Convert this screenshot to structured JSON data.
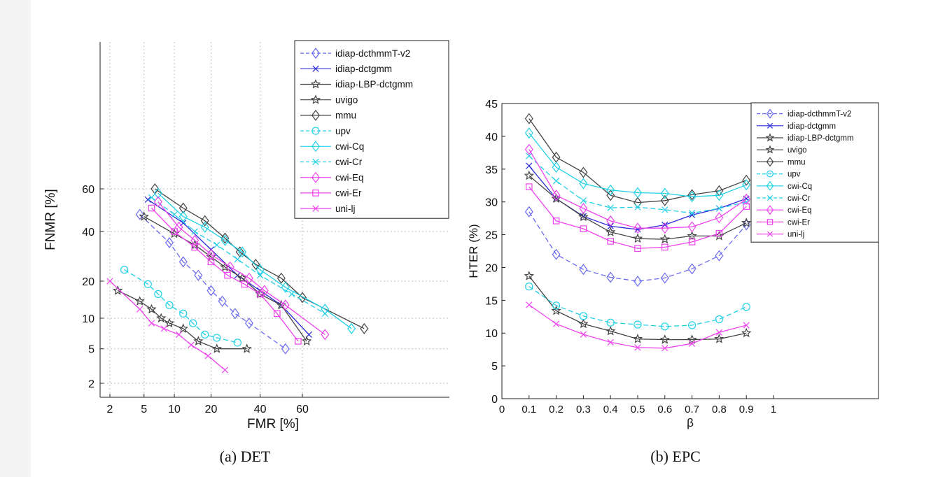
{
  "captions": {
    "det": "(a) DET",
    "epc": "(b) EPC"
  },
  "colors": {
    "idiap-dcthmmT-v2": "#6a6aee",
    "idiap-dctgmm": "#2b2bd8",
    "idiap-LBP-dctgmm": "#444444",
    "uvigo": "#444444",
    "mmu": "#444444",
    "upv": "#22d0e6",
    "cwi-Cq": "#22d0e6",
    "cwi-Cr": "#22d0e6",
    "cwi-Eq": "#ee44ee",
    "cwi-Er": "#ee44ee",
    "uni-lj": "#ee44ee"
  },
  "chart_data": [
    {
      "type": "line",
      "title": "",
      "xlabel": "FMR [%]",
      "ylabel": "FNMR [%]",
      "xscale": "probit",
      "yscale": "probit",
      "xticks": [
        2,
        5,
        10,
        20,
        40,
        60
      ],
      "yticks": [
        2,
        5,
        10,
        20,
        40,
        60
      ],
      "xtick_labels": [
        "2",
        "5",
        "10",
        "20",
        "40",
        "60"
      ],
      "ytick_labels": [
        "2",
        "5",
        "10",
        "20",
        "40",
        "60"
      ],
      "grid": true,
      "legend_position": "top-right",
      "series": [
        {
          "name": "idiap-dcthmmT-v2",
          "marker": "diamond",
          "dash": true,
          "points": [
            [
              4.5,
              48
            ],
            [
              9,
              35
            ],
            [
              12,
              27
            ],
            [
              16,
              22
            ],
            [
              20,
              17
            ],
            [
              24,
              14
            ],
            [
              29,
              11
            ],
            [
              35,
              9
            ],
            [
              52,
              5
            ]
          ]
        },
        {
          "name": "idiap-dctgmm",
          "marker": "x",
          "dash": false,
          "points": [
            [
              5.5,
              55
            ],
            [
              12,
              44
            ],
            [
              20,
              32
            ],
            [
              30,
              22
            ],
            [
              40,
              17
            ],
            [
              50,
              13
            ],
            [
              63,
              7
            ]
          ]
        },
        {
          "name": "idiap-LBP-dctgmm",
          "marker": "star",
          "dash": false,
          "points": [
            [
              5,
              47
            ],
            [
              10,
              39
            ],
            [
              15,
              34
            ],
            [
              20,
              29
            ],
            [
              25,
              25
            ],
            [
              32,
              21
            ],
            [
              40,
              16
            ],
            [
              50,
              13
            ],
            [
              62,
              6
            ]
          ]
        },
        {
          "name": "uvigo",
          "marker": "star",
          "dash": false,
          "points": [
            [
              2.5,
              17
            ],
            [
              4.5,
              14
            ],
            [
              6,
              12
            ],
            [
              7.5,
              10
            ],
            [
              9,
              9
            ],
            [
              12,
              8
            ],
            [
              16,
              6
            ],
            [
              22,
              5
            ],
            [
              34,
              5
            ]
          ]
        },
        {
          "name": "mmu",
          "marker": "diamond",
          "dash": false,
          "points": [
            [
              6.5,
              60
            ],
            [
              12,
              51
            ],
            [
              18,
              45
            ],
            [
              25,
              37
            ],
            [
              31,
              31
            ],
            [
              38,
              26
            ],
            [
              50,
              21
            ],
            [
              60,
              15
            ],
            [
              84,
              8
            ]
          ]
        },
        {
          "name": "upv",
          "marker": "circle",
          "dash": true,
          "points": [
            [
              3,
              24
            ],
            [
              5.5,
              19
            ],
            [
              7,
              16
            ],
            [
              9,
              13
            ],
            [
              12,
              11
            ],
            [
              14.5,
              9
            ],
            [
              18,
              7
            ],
            [
              22,
              6.5
            ],
            [
              30,
              5.8
            ]
          ]
        },
        {
          "name": "cwi-Cq",
          "marker": "diamond",
          "dash": false,
          "points": [
            [
              7,
              58
            ],
            [
              12,
              47
            ],
            [
              18,
              42
            ],
            [
              25,
              36
            ],
            [
              32,
              31
            ],
            [
              40,
              24
            ],
            [
              52,
              18
            ],
            [
              70,
              12
            ],
            [
              80,
              8
            ]
          ]
        },
        {
          "name": "cwi-Cr",
          "marker": "x",
          "dash": true,
          "points": [
            [
              6,
              56
            ],
            [
              10,
              48
            ],
            [
              15,
              40
            ],
            [
              22,
              34
            ],
            [
              30,
              28
            ],
            [
              40,
              22
            ],
            [
              55,
              16
            ],
            [
              70,
              11
            ]
          ]
        },
        {
          "name": "cwi-Eq",
          "marker": "diamond",
          "dash": false,
          "points": [
            [
              7,
              54
            ],
            [
              11,
              42
            ],
            [
              15,
              36
            ],
            [
              20,
              30
            ],
            [
              27,
              25
            ],
            [
              35,
              21
            ],
            [
              42,
              17
            ],
            [
              52,
              13
            ],
            [
              70,
              7
            ]
          ]
        },
        {
          "name": "cwi-Er",
          "marker": "square",
          "dash": false,
          "points": [
            [
              6,
              51
            ],
            [
              10,
              40
            ],
            [
              15,
              33
            ],
            [
              20,
              27
            ],
            [
              26,
              22
            ],
            [
              33,
              19
            ],
            [
              40,
              16
            ],
            [
              48,
              11
            ],
            [
              58,
              6
            ]
          ]
        },
        {
          "name": "uni-lj",
          "marker": "x",
          "dash": false,
          "points": [
            [
              2,
              20
            ],
            [
              4.5,
              12
            ],
            [
              6,
              9
            ],
            [
              8,
              8
            ],
            [
              11,
              7
            ],
            [
              14,
              5.5
            ],
            [
              19,
              4.2
            ],
            [
              25,
              2.9
            ]
          ]
        }
      ]
    },
    {
      "type": "line",
      "title": "",
      "xlabel": "β",
      "ylabel": "HTER (%)",
      "xlim": [
        0,
        1
      ],
      "ylim": [
        0,
        45
      ],
      "xticks": [
        0,
        0.1,
        0.2,
        0.3,
        0.4,
        0.5,
        0.6,
        0.7,
        0.8,
        0.9,
        1
      ],
      "yticks": [
        0,
        5,
        10,
        15,
        20,
        25,
        30,
        35,
        40,
        45
      ],
      "xtick_labels": [
        "0",
        "0.1",
        "0.2",
        "0.3",
        "0.4",
        "0.5",
        "0.6",
        "0.7",
        "0.8",
        "0.9",
        "1"
      ],
      "ytick_labels": [
        "0",
        "5",
        "10",
        "15",
        "20",
        "25",
        "30",
        "35",
        "40",
        "45"
      ],
      "grid": false,
      "legend_position": "top-right",
      "x": [
        0.1,
        0.2,
        0.3,
        0.4,
        0.5,
        0.6,
        0.7,
        0.8,
        0.9
      ],
      "series": [
        {
          "name": "idiap-dcthmmT-v2",
          "marker": "diamond",
          "dash": true,
          "values": [
            28.5,
            22.0,
            19.7,
            18.5,
            17.9,
            18.4,
            19.8,
            21.8,
            26.5
          ]
        },
        {
          "name": "idiap-dctgmm",
          "marker": "x",
          "dash": false,
          "values": [
            35.5,
            30.5,
            27.8,
            26.3,
            25.8,
            26.5,
            28.0,
            29.0,
            30.5
          ]
        },
        {
          "name": "idiap-LBP-dctgmm",
          "marker": "star",
          "dash": false,
          "values": [
            34.0,
            30.5,
            27.7,
            25.4,
            24.4,
            24.3,
            24.8,
            24.8,
            26.8
          ]
        },
        {
          "name": "uvigo",
          "marker": "star",
          "dash": false,
          "values": [
            18.7,
            13.4,
            11.4,
            10.3,
            9.1,
            9.0,
            9.0,
            9.1,
            10.0
          ]
        },
        {
          "name": "mmu",
          "marker": "diamond",
          "dash": false,
          "values": [
            42.7,
            36.8,
            34.5,
            31.0,
            29.9,
            30.2,
            31.1,
            31.7,
            33.3
          ]
        },
        {
          "name": "upv",
          "marker": "circle",
          "dash": true,
          "values": [
            17.1,
            14.2,
            12.6,
            11.6,
            11.3,
            11.0,
            11.2,
            12.1,
            14.0
          ]
        },
        {
          "name": "cwi-Cq",
          "marker": "diamond",
          "dash": false,
          "values": [
            40.5,
            35.3,
            32.8,
            31.8,
            31.4,
            31.3,
            30.8,
            31.0,
            32.6
          ]
        },
        {
          "name": "cwi-Cr",
          "marker": "x",
          "dash": true,
          "values": [
            37.0,
            33.2,
            30.2,
            29.1,
            29.2,
            28.8,
            28.3,
            29.0,
            30.0
          ]
        },
        {
          "name": "cwi-Eq",
          "marker": "diamond",
          "dash": false,
          "values": [
            38.0,
            31.0,
            29.0,
            27.1,
            26.0,
            26.0,
            26.2,
            27.6,
            30.4
          ]
        },
        {
          "name": "cwi-Er",
          "marker": "square",
          "dash": false,
          "values": [
            32.3,
            27.1,
            25.9,
            24.0,
            22.9,
            23.1,
            23.9,
            25.2,
            29.3
          ]
        },
        {
          "name": "uni-lj",
          "marker": "x",
          "dash": false,
          "values": [
            14.3,
            11.4,
            9.8,
            8.6,
            7.8,
            7.7,
            8.4,
            10.1,
            11.2
          ]
        }
      ]
    }
  ]
}
